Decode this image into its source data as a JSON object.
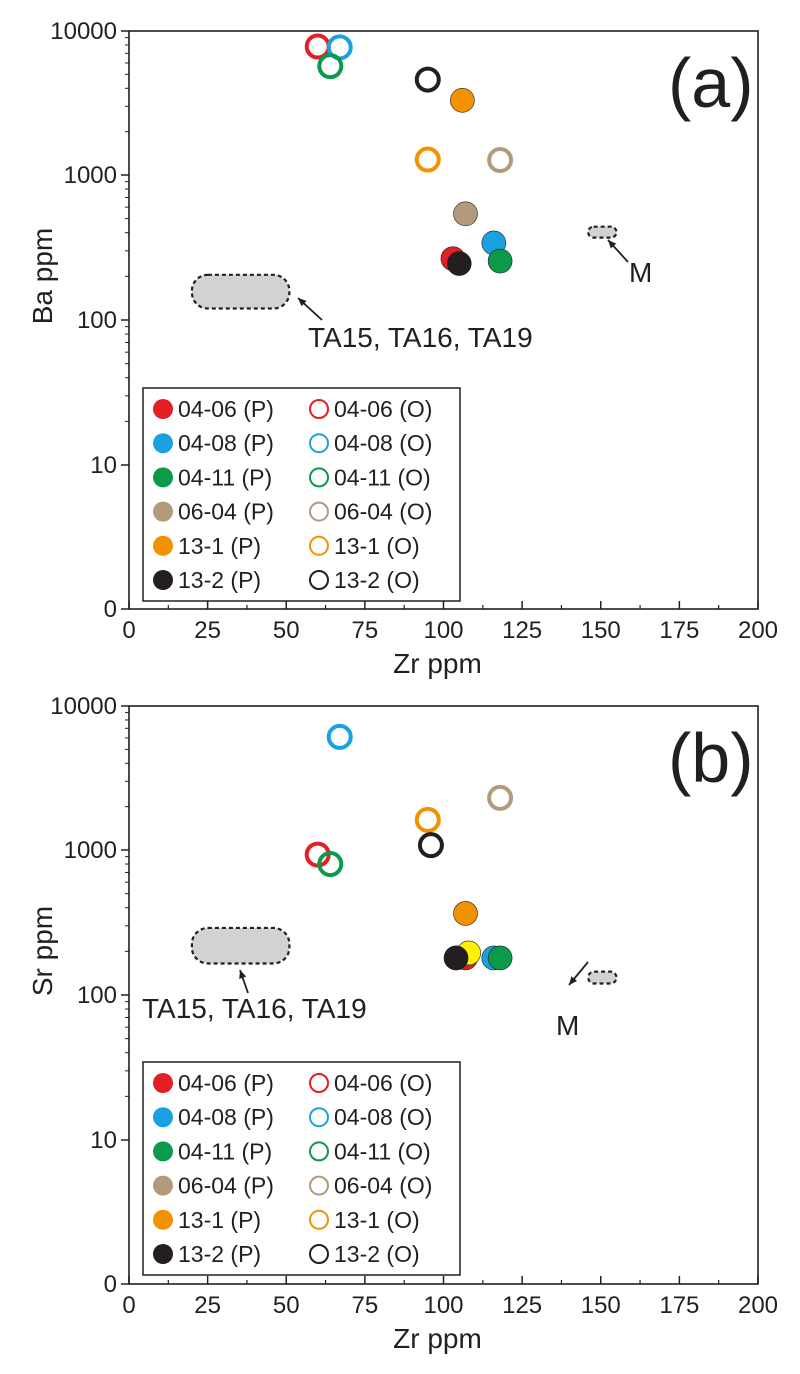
{
  "series_styles": [
    {
      "name": "04-06 (P)",
      "color": "#e31e24",
      "filled": true
    },
    {
      "name": "04-06 (O)",
      "color": "#e31e24",
      "filled": false
    },
    {
      "name": "04-08 (P)",
      "color": "#1ba1e2",
      "filled": true
    },
    {
      "name": "04-08 (O)",
      "color": "#1ba1e2",
      "filled": false
    },
    {
      "name": "04-11 (P)",
      "color": "#0b9a4a",
      "filled": true
    },
    {
      "name": "04-11 (O)",
      "color": "#0b9a4a",
      "filled": false
    },
    {
      "name": "06-04 (P)",
      "color": "#b39a7c",
      "filled": true
    },
    {
      "name": "06-04 (O)",
      "color": "#b39a7c",
      "filled": false
    },
    {
      "name": "13-1 (P)",
      "color": "#f39200",
      "filled": true
    },
    {
      "name": "13-1 (O)",
      "color": "#f39200",
      "filled": false
    },
    {
      "name": "13-2 (P)",
      "color": "#231f20",
      "filled": true
    },
    {
      "name": "13-2 (O)",
      "color": "#231f20",
      "filled": false
    }
  ],
  "extra_marker_color": "#fff200",
  "field_fill": "#d1d2d4",
  "chart_data": [
    {
      "type": "scatter",
      "panel_label": "(a)",
      "xlabel": "Zr ppm",
      "ylabel": "Ba ppm",
      "x_scale": "linear",
      "y_scale": "log",
      "xlim": [
        0,
        200
      ],
      "ylim": [
        0,
        10000
      ],
      "x_ticks": [
        "0",
        "25",
        "50",
        "75",
        "100",
        "125",
        "150",
        "175",
        "200"
      ],
      "y_ticks": [
        "0",
        "10",
        "100",
        "1000",
        "10000"
      ],
      "grid": false,
      "legend_position": "bottom-left",
      "series": [
        {
          "name": "04-06 (P)",
          "points": [
            [
              103,
              265
            ]
          ]
        },
        {
          "name": "04-06 (O)",
          "points": [
            [
              60,
              7800
            ]
          ]
        },
        {
          "name": "04-08 (P)",
          "points": [
            [
              116,
              340
            ]
          ]
        },
        {
          "name": "04-08 (O)",
          "points": [
            [
              67,
              7700
            ]
          ]
        },
        {
          "name": "04-11 (P)",
          "points": [
            [
              118,
              255
            ]
          ]
        },
        {
          "name": "04-11 (O)",
          "points": [
            [
              64,
              5700
            ]
          ]
        },
        {
          "name": "06-04 (P)",
          "points": [
            [
              107,
              540
            ]
          ]
        },
        {
          "name": "06-04 (O)",
          "points": [
            [
              118,
              1270
            ]
          ]
        },
        {
          "name": "13-1 (P)",
          "points": [
            [
              106,
              3300
            ]
          ]
        },
        {
          "name": "13-1 (O)",
          "points": [
            [
              95,
              1280
            ]
          ]
        },
        {
          "name": "13-2 (P)",
          "points": [
            [
              105,
              245
            ]
          ]
        },
        {
          "name": "13-2 (O)",
          "points": [
            [
              95,
              4600
            ]
          ]
        }
      ],
      "extra_points": [],
      "fields": [
        {
          "label": "TA15, TA16, TA19",
          "x": [
            20,
            51
          ],
          "y": [
            120,
            205
          ]
        },
        {
          "label": "M",
          "x": [
            146,
            155
          ],
          "y": [
            370,
            440
          ]
        }
      ]
    },
    {
      "type": "scatter",
      "panel_label": "(b)",
      "xlabel": "Zr ppm",
      "ylabel": "Sr ppm",
      "x_scale": "linear",
      "y_scale": "log",
      "xlim": [
        0,
        200
      ],
      "ylim": [
        0,
        10000
      ],
      "x_ticks": [
        "0",
        "25",
        "50",
        "75",
        "100",
        "125",
        "150",
        "175",
        "200"
      ],
      "y_ticks": [
        "0",
        "10",
        "100",
        "1000",
        "10000"
      ],
      "grid": false,
      "legend_position": "bottom-left",
      "series": [
        {
          "name": "04-06 (P)",
          "points": [
            [
              107,
              180
            ]
          ]
        },
        {
          "name": "04-06 (O)",
          "points": [
            [
              60,
              930
            ]
          ]
        },
        {
          "name": "04-08 (P)",
          "points": [
            [
              116,
              180
            ]
          ]
        },
        {
          "name": "04-08 (O)",
          "points": [
            [
              67,
              6100
            ]
          ]
        },
        {
          "name": "04-11 (P)",
          "points": [
            [
              118,
              180
            ]
          ]
        },
        {
          "name": "04-11 (O)",
          "points": [
            [
              64,
              800
            ]
          ]
        },
        {
          "name": "06-04 (P)",
          "points": []
        },
        {
          "name": "06-04 (O)",
          "points": [
            [
              118,
              2300
            ]
          ]
        },
        {
          "name": "13-1 (P)",
          "points": [
            [
              107,
              365
            ]
          ]
        },
        {
          "name": "13-1 (O)",
          "points": [
            [
              95,
              1620
            ]
          ]
        },
        {
          "name": "13-2 (P)",
          "points": [
            [
              104,
              180
            ]
          ]
        },
        {
          "name": "13-2 (O)",
          "points": [
            [
              96,
              1080
            ]
          ]
        }
      ],
      "extra_points": [
        [
          108,
          195
        ]
      ],
      "fields": [
        {
          "label": "TA15, TA16, TA19",
          "x": [
            20,
            51
          ],
          "y": [
            165,
            290
          ]
        },
        {
          "label": "M",
          "x": [
            146,
            155
          ],
          "y": [
            120,
            145
          ]
        }
      ]
    }
  ]
}
